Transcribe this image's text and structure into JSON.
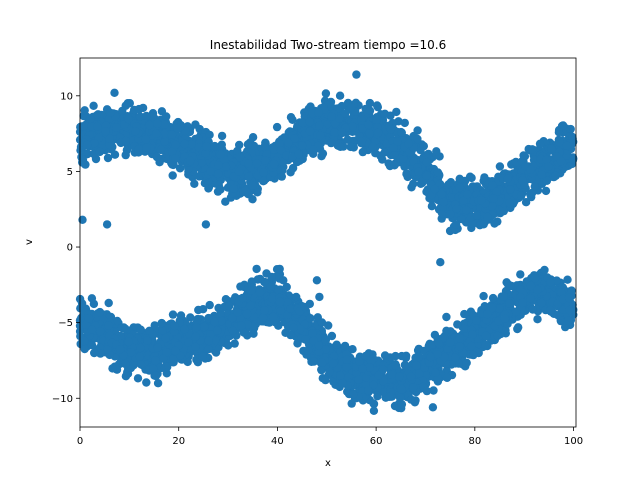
{
  "chart_data": {
    "type": "scatter",
    "title": "Inestabilidad Two-stream  tiempo =10.6",
    "xlabel": "x",
    "ylabel": "v",
    "xlim": [
      0,
      100.5
    ],
    "ylim": [
      -11.9,
      12.5
    ],
    "xticks": [
      0,
      20,
      40,
      60,
      80,
      100
    ],
    "yticks": [
      -10,
      -5,
      0,
      5,
      10
    ],
    "grid": false,
    "legend": "none",
    "marker_color": "#1f77b4",
    "series": [
      {
        "values_description_free": true,
        "upper_band_centerline": [
          [
            0,
            7.2
          ],
          [
            5,
            7.6
          ],
          [
            10,
            7.9
          ],
          [
            15,
            7.2
          ],
          [
            20,
            6.6
          ],
          [
            25,
            6.0
          ],
          [
            30,
            4.8
          ],
          [
            35,
            5.2
          ],
          [
            40,
            6.0
          ],
          [
            45,
            7.2
          ],
          [
            50,
            8.0
          ],
          [
            55,
            8.2
          ],
          [
            60,
            7.8
          ],
          [
            65,
            6.6
          ],
          [
            70,
            5.0
          ],
          [
            75,
            3.0
          ],
          [
            80,
            2.8
          ],
          [
            85,
            3.4
          ],
          [
            90,
            4.8
          ],
          [
            95,
            5.8
          ],
          [
            100,
            6.6
          ]
        ],
        "lower_band_centerline": [
          [
            0,
            -4.8
          ],
          [
            5,
            -5.8
          ],
          [
            10,
            -6.8
          ],
          [
            15,
            -7.0
          ],
          [
            20,
            -6.2
          ],
          [
            25,
            -6.0
          ],
          [
            30,
            -5.0
          ],
          [
            35,
            -3.8
          ],
          [
            40,
            -3.5
          ],
          [
            45,
            -5.0
          ],
          [
            50,
            -7.2
          ],
          [
            55,
            -8.4
          ],
          [
            60,
            -8.8
          ],
          [
            65,
            -9.0
          ],
          [
            70,
            -8.0
          ],
          [
            75,
            -6.8
          ],
          [
            80,
            -5.8
          ],
          [
            85,
            -4.5
          ],
          [
            90,
            -3.2
          ],
          [
            95,
            -3.0
          ],
          [
            100,
            -4.2
          ]
        ],
        "band_half_width": 1.4,
        "point_count_per_band": 2400,
        "outliers": [
          [
            0.5,
            1.8
          ],
          [
            5.5,
            1.5
          ],
          [
            7,
            10.2
          ],
          [
            56,
            11.4
          ],
          [
            25.5,
            1.5
          ],
          [
            73,
            -1.0
          ],
          [
            71.5,
            -10.6
          ],
          [
            48,
            -2.2
          ],
          [
            48.5,
            -3.3
          ]
        ]
      }
    ]
  }
}
